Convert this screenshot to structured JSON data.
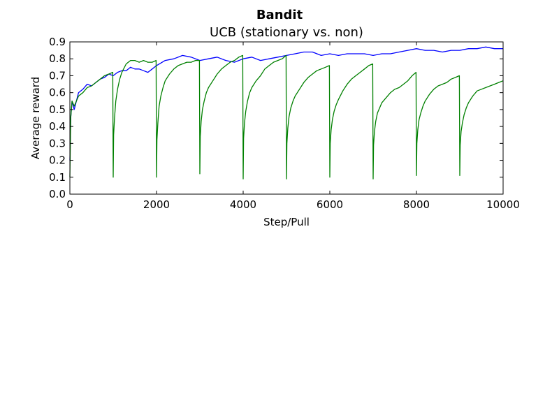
{
  "chart_data": {
    "type": "line",
    "suptitle": "Bandit",
    "title": "UCB (stationary vs. non)",
    "xlabel": "Step/Pull",
    "ylabel": "Average reward",
    "xlim": [
      0,
      10000
    ],
    "ylim": [
      0,
      0.9
    ],
    "xticks": [
      0,
      2000,
      4000,
      6000,
      8000,
      10000
    ],
    "xtick_labels": [
      "0",
      "2000",
      "4000",
      "6000",
      "8000",
      "10000"
    ],
    "yticks": [
      0.0,
      0.1,
      0.2,
      0.3,
      0.4,
      0.5,
      0.6,
      0.7,
      0.8,
      0.9
    ],
    "ytick_labels": [
      "0.0",
      "0.1",
      "0.2",
      "0.3",
      "0.4",
      "0.5",
      "0.6",
      "0.7",
      "0.8",
      "0.9"
    ],
    "grid": false,
    "legend": "none",
    "series": [
      {
        "color": "#0000ff",
        "x": [
          0,
          20,
          50,
          100,
          150,
          200,
          300,
          400,
          500,
          600,
          700,
          800,
          900,
          1000,
          1100,
          1200,
          1300,
          1400,
          1500,
          1600,
          1700,
          1800,
          1900,
          2000,
          2200,
          2400,
          2600,
          2800,
          3000,
          3200,
          3400,
          3600,
          3800,
          4000,
          4200,
          4400,
          4600,
          4800,
          5000,
          5200,
          5400,
          5600,
          5800,
          6000,
          6200,
          6400,
          6600,
          6800,
          7000,
          7200,
          7400,
          7600,
          7800,
          8000,
          8200,
          8400,
          8600,
          8800,
          9000,
          9200,
          9400,
          9600,
          9800,
          10000
        ],
        "y": [
          0.2,
          0.45,
          0.55,
          0.5,
          0.55,
          0.6,
          0.62,
          0.65,
          0.64,
          0.66,
          0.68,
          0.69,
          0.71,
          0.7,
          0.72,
          0.73,
          0.73,
          0.75,
          0.74,
          0.74,
          0.73,
          0.72,
          0.74,
          0.76,
          0.79,
          0.8,
          0.82,
          0.81,
          0.79,
          0.8,
          0.81,
          0.79,
          0.78,
          0.8,
          0.81,
          0.79,
          0.8,
          0.81,
          0.82,
          0.83,
          0.84,
          0.84,
          0.82,
          0.83,
          0.82,
          0.83,
          0.83,
          0.83,
          0.82,
          0.83,
          0.83,
          0.84,
          0.85,
          0.86,
          0.85,
          0.85,
          0.84,
          0.85,
          0.85,
          0.86,
          0.86,
          0.87,
          0.86,
          0.86
        ]
      },
      {
        "color": "#008000",
        "x": [
          0,
          20,
          50,
          100,
          150,
          200,
          300,
          400,
          500,
          600,
          700,
          800,
          900,
          990,
          1000,
          1010,
          1030,
          1060,
          1100,
          1150,
          1200,
          1300,
          1400,
          1500,
          1600,
          1700,
          1800,
          1900,
          1990,
          2000,
          2010,
          2030,
          2060,
          2100,
          2150,
          2200,
          2300,
          2400,
          2500,
          2600,
          2700,
          2800,
          2900,
          2990,
          3000,
          3010,
          3030,
          3060,
          3100,
          3150,
          3200,
          3300,
          3400,
          3500,
          3600,
          3700,
          3800,
          3900,
          3990,
          4000,
          4010,
          4030,
          4060,
          4100,
          4150,
          4200,
          4300,
          4400,
          4500,
          4600,
          4700,
          4800,
          4900,
          4990,
          5000,
          5010,
          5030,
          5060,
          5100,
          5150,
          5200,
          5300,
          5400,
          5500,
          5600,
          5700,
          5800,
          5900,
          5990,
          6000,
          6010,
          6030,
          6060,
          6100,
          6150,
          6200,
          6300,
          6400,
          6500,
          6600,
          6700,
          6800,
          6900,
          6990,
          7000,
          7010,
          7030,
          7060,
          7100,
          7150,
          7200,
          7300,
          7400,
          7500,
          7600,
          7700,
          7800,
          7900,
          7990,
          8000,
          8010,
          8030,
          8060,
          8100,
          8150,
          8200,
          8300,
          8400,
          8500,
          8600,
          8700,
          8800,
          8900,
          8990,
          9000,
          9010,
          9030,
          9060,
          9100,
          9150,
          9200,
          9300,
          9400,
          9500,
          9600,
          9700,
          9800,
          9900,
          10000
        ],
        "y": [
          0.1,
          0.45,
          0.55,
          0.52,
          0.55,
          0.58,
          0.6,
          0.63,
          0.64,
          0.66,
          0.68,
          0.7,
          0.71,
          0.72,
          0.1,
          0.35,
          0.45,
          0.55,
          0.62,
          0.68,
          0.72,
          0.77,
          0.79,
          0.79,
          0.78,
          0.79,
          0.78,
          0.78,
          0.79,
          0.1,
          0.32,
          0.42,
          0.52,
          0.58,
          0.63,
          0.67,
          0.71,
          0.74,
          0.76,
          0.77,
          0.78,
          0.78,
          0.79,
          0.79,
          0.12,
          0.34,
          0.43,
          0.5,
          0.55,
          0.6,
          0.63,
          0.67,
          0.71,
          0.74,
          0.76,
          0.78,
          0.79,
          0.81,
          0.82,
          0.09,
          0.33,
          0.42,
          0.49,
          0.55,
          0.6,
          0.63,
          0.67,
          0.7,
          0.74,
          0.76,
          0.78,
          0.79,
          0.8,
          0.82,
          0.09,
          0.3,
          0.39,
          0.46,
          0.51,
          0.55,
          0.58,
          0.62,
          0.66,
          0.69,
          0.71,
          0.73,
          0.74,
          0.75,
          0.76,
          0.1,
          0.3,
          0.38,
          0.44,
          0.49,
          0.53,
          0.56,
          0.61,
          0.65,
          0.68,
          0.7,
          0.72,
          0.74,
          0.76,
          0.77,
          0.09,
          0.29,
          0.37,
          0.43,
          0.48,
          0.51,
          0.54,
          0.57,
          0.6,
          0.62,
          0.63,
          0.65,
          0.67,
          0.7,
          0.72,
          0.11,
          0.3,
          0.38,
          0.44,
          0.48,
          0.52,
          0.55,
          0.59,
          0.62,
          0.64,
          0.65,
          0.66,
          0.68,
          0.69,
          0.7,
          0.11,
          0.29,
          0.37,
          0.42,
          0.47,
          0.51,
          0.54,
          0.58,
          0.61,
          0.62,
          0.63,
          0.64,
          0.65,
          0.66,
          0.67
        ]
      }
    ]
  }
}
